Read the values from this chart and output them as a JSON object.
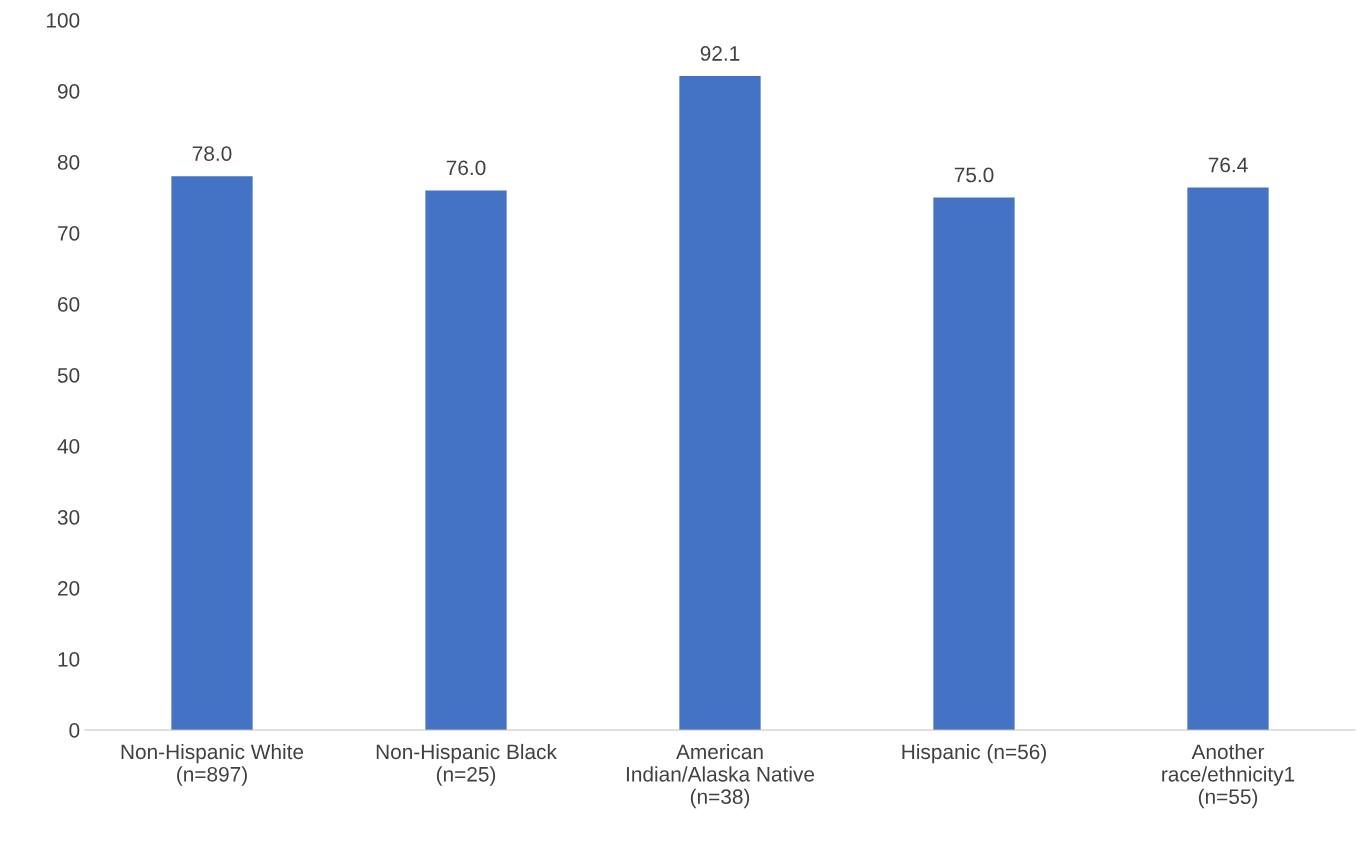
{
  "chart_data": {
    "type": "bar",
    "categories": [
      "Non-Hispanic White\n(n=897)",
      "Non-Hispanic Black\n(n=25)",
      "American\nIndian/Alaska Native\n(n=38)",
      "Hispanic (n=56)",
      "Another\nrace/ethnicity1\n(n=55)"
    ],
    "values": [
      78.0,
      76.0,
      92.1,
      75.0,
      76.4
    ],
    "color": "#4472c4",
    "ylim": [
      0,
      100
    ],
    "yticks": [
      0,
      10,
      20,
      30,
      40,
      50,
      60,
      70,
      80,
      90,
      100
    ],
    "value_labels": [
      "78.0",
      "76.0",
      "92.1",
      "75.0",
      "76.4"
    ],
    "grid": false,
    "legend": false
  }
}
